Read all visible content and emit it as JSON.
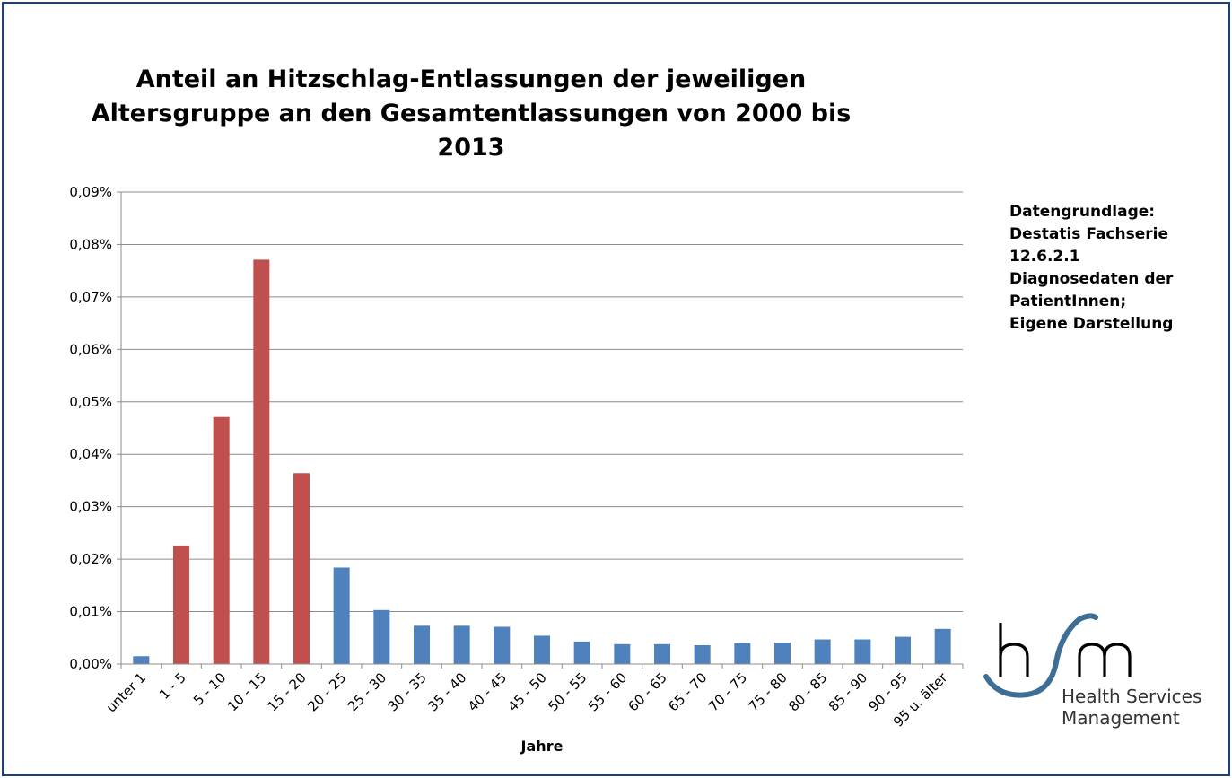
{
  "chart_data": {
    "type": "bar",
    "title_lines": [
      "Anteil an Hitzschlag-Entlassungen der jeweiligen",
      "Altersgruppe an den Gesamtentlassungen von 2000 bis",
      "2013"
    ],
    "xlabel": "Jahre",
    "ylabel": "",
    "ylim": [
      0,
      0.09
    ],
    "yticks": [
      "0,00%",
      "0,01%",
      "0,02%",
      "0,03%",
      "0,04%",
      "0,05%",
      "0,06%",
      "0,07%",
      "0,08%",
      "0,09%"
    ],
    "grid": true,
    "categories": [
      "unter 1",
      "1 - 5",
      "5 - 10",
      "10 - 15",
      "15 - 20",
      "20 - 25",
      "25 - 30",
      "30 - 35",
      "35 - 40",
      "40 - 45",
      "45 - 50",
      "50 - 55",
      "55 - 60",
      "60 - 65",
      "65 - 70",
      "70 - 75",
      "75 - 80",
      "80 - 85",
      "85 - 90",
      "90 - 95",
      "95 u. älter"
    ],
    "values": [
      0.0015,
      0.0226,
      0.0471,
      0.0771,
      0.0364,
      0.0184,
      0.0103,
      0.0073,
      0.0073,
      0.0071,
      0.0054,
      0.0043,
      0.0038,
      0.0038,
      0.0036,
      0.004,
      0.0041,
      0.0047,
      0.0047,
      0.0052,
      0.0067
    ],
    "bar_colors": [
      "#4f81bd",
      "#c0504d",
      "#c0504d",
      "#c0504d",
      "#c0504d",
      "#4f81bd",
      "#4f81bd",
      "#4f81bd",
      "#4f81bd",
      "#4f81bd",
      "#4f81bd",
      "#4f81bd",
      "#4f81bd",
      "#4f81bd",
      "#4f81bd",
      "#4f81bd",
      "#4f81bd",
      "#4f81bd",
      "#4f81bd",
      "#4f81bd",
      "#4f81bd"
    ]
  },
  "source_note": {
    "lines": [
      "Datengrundlage:",
      "Destatis Fachserie",
      "12.6.2.1",
      "Diagnosedaten der",
      "PatientInnen;",
      "Eigene Darstellung"
    ]
  },
  "logo": {
    "mark": "hsm",
    "line1": "Health Services",
    "line2": "Management",
    "swoosh_color": "#3d6f96"
  },
  "frame_color": "#243f6b"
}
